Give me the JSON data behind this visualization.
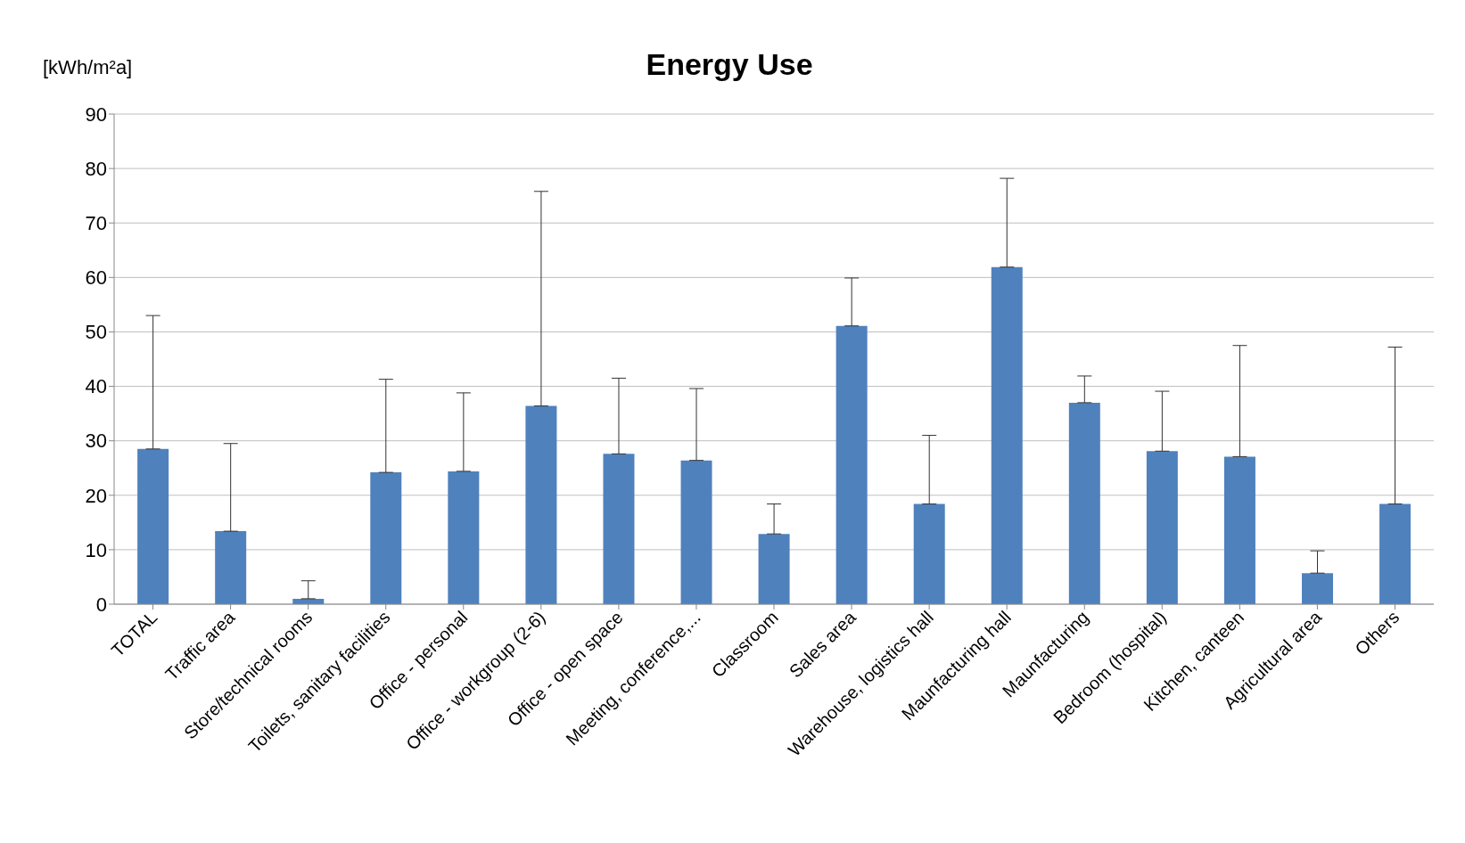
{
  "chart_data": {
    "type": "bar",
    "title": "Energy Use",
    "ylabel": "[kWh/m²a]",
    "categories": [
      "TOTAL",
      "Traffic area",
      "Store/technical rooms",
      "Toilets, sanitary facilities",
      "Office - personal",
      "Office - workgroup (2-6)",
      "Office - open space",
      "Meeting, conference,...",
      "Classroom",
      "Sales area",
      "Warehouse, logistics hall",
      "Maunfacturing hall",
      "Maunfacturing",
      "Bedroom (hospital)",
      "Kitchen, canteen",
      "Agricultural area",
      "Others"
    ],
    "values": [
      28.5,
      13.4,
      1.0,
      24.2,
      24.4,
      36.4,
      27.6,
      26.4,
      12.9,
      51.1,
      18.4,
      61.9,
      37.0,
      28.1,
      27.1,
      5.7,
      18.4
    ],
    "errors": [
      [
        28.5,
        53.0
      ],
      [
        13.4,
        29.5
      ],
      [
        1.0,
        4.3
      ],
      [
        24.2,
        41.3
      ],
      [
        24.4,
        38.8
      ],
      [
        36.4,
        75.8
      ],
      [
        27.6,
        41.5
      ],
      [
        26.4,
        39.6
      ],
      [
        12.9,
        18.4
      ],
      [
        51.1,
        59.9
      ],
      [
        18.4,
        31.0
      ],
      [
        61.9,
        78.2
      ],
      [
        37.0,
        41.9
      ],
      [
        28.1,
        39.1
      ],
      [
        27.1,
        47.5
      ],
      [
        5.7,
        9.8
      ],
      [
        18.4,
        47.2
      ]
    ],
    "color": "#4f81bd",
    "ylim": [
      0,
      90
    ],
    "yticks": [
      0,
      10,
      20,
      30,
      40,
      50,
      60,
      70,
      80,
      90
    ],
    "grid": "y"
  }
}
